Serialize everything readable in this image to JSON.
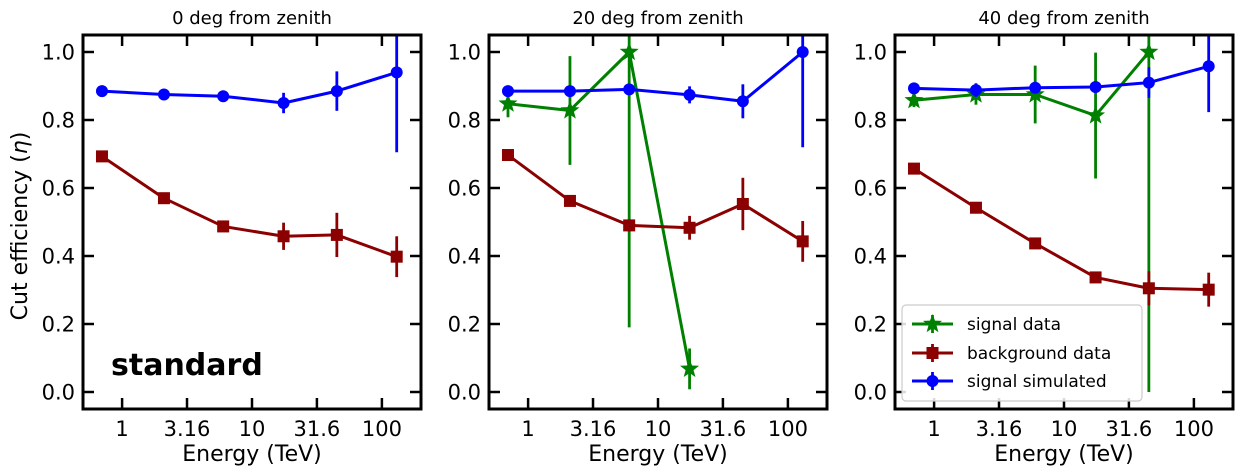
{
  "chart_data": {
    "type": "line",
    "xlabel": "Energy (TeV)",
    "ylabel": "Cut efficiency (η)",
    "ylabel_main": "Cut efficiency (",
    "ylabel_symbol": "η",
    "ylabel_close": ")",
    "x_scale": "log",
    "xlim": [
      0.5,
      200
    ],
    "ylim": [
      -0.05,
      1.05
    ],
    "x_ticks": [
      1,
      3.16,
      10,
      31.6,
      100
    ],
    "x_tick_labels": [
      "1",
      "3.16",
      "10",
      "31.6",
      "100"
    ],
    "y_ticks": [
      0.0,
      0.2,
      0.4,
      0.6,
      0.8,
      1.0
    ],
    "y_tick_labels": [
      "0.0",
      "0.2",
      "0.4",
      "0.6",
      "0.8",
      "1.0"
    ],
    "grid": false,
    "annotation": "standard",
    "legend": {
      "placement": "lower-left",
      "panel": 2,
      "entries": [
        "signal data",
        "background data",
        "signal simulated"
      ]
    },
    "series_styles": [
      {
        "name": "signal data",
        "color": "#008000",
        "marker": "star"
      },
      {
        "name": "background data",
        "color": "#8B0000",
        "marker": "square"
      },
      {
        "name": "signal simulated",
        "color": "#0000FF",
        "marker": "circle"
      }
    ],
    "panels": [
      {
        "title": "0 deg from zenith",
        "series": [
          {
            "name": "background data",
            "x": [
              0.7,
              2.1,
              6.0,
              17.5,
              45,
              130
            ],
            "y": [
              0.693,
              0.57,
              0.487,
              0.458,
              0.462,
              0.398
            ],
            "err": [
              0.01,
              0.01,
              0.015,
              0.04,
              0.065,
              0.06
            ]
          },
          {
            "name": "signal simulated",
            "x": [
              0.7,
              2.1,
              6.0,
              17.5,
              45,
              130
            ],
            "y": [
              0.885,
              0.875,
              0.87,
              0.85,
              0.885,
              0.94
            ],
            "err": [
              0.008,
              0.008,
              0.01,
              0.03,
              0.058,
              0.235
            ]
          }
        ]
      },
      {
        "title": "20 deg from zenith",
        "series": [
          {
            "name": "signal data",
            "x": [
              0.7,
              2.1,
              6.0,
              17.5
            ],
            "y": [
              0.848,
              0.828,
              1.0,
              0.068
            ],
            "err": [
              0.04,
              0.16,
              0.81,
              0.06
            ]
          },
          {
            "name": "background data",
            "x": [
              0.7,
              2.1,
              6.0,
              17.5,
              45,
              130
            ],
            "y": [
              0.697,
              0.562,
              0.49,
              0.483,
              0.553,
              0.443
            ],
            "err": [
              0.01,
              0.012,
              0.018,
              0.035,
              0.077,
              0.06
            ]
          },
          {
            "name": "signal simulated",
            "x": [
              0.7,
              2.1,
              6.0,
              17.5,
              45,
              130
            ],
            "y": [
              0.885,
              0.885,
              0.89,
              0.874,
              0.855,
              1.0
            ],
            "err": [
              0.008,
              0.008,
              0.012,
              0.025,
              0.05,
              0.28
            ]
          }
        ]
      },
      {
        "title": "40 deg from zenith",
        "series": [
          {
            "name": "signal data",
            "x": [
              0.7,
              2.1,
              6.0,
              17.5,
              45
            ],
            "y": [
              0.858,
              0.875,
              0.875,
              0.813,
              1.0
            ],
            "err": [
              0.02,
              0.03,
              0.085,
              0.185,
              1.0
            ]
          },
          {
            "name": "background data",
            "x": [
              0.7,
              2.1,
              6.0,
              17.5,
              45,
              130
            ],
            "y": [
              0.657,
              0.542,
              0.437,
              0.337,
              0.305,
              0.301
            ],
            "err": [
              0.01,
              0.01,
              0.01,
              0.012,
              0.05,
              0.05
            ]
          },
          {
            "name": "signal simulated",
            "x": [
              0.7,
              2.1,
              6.0,
              17.5,
              45,
              130
            ],
            "y": [
              0.893,
              0.888,
              0.895,
              0.897,
              0.91,
              0.958
            ],
            "err": [
              0.008,
              0.02,
              0.012,
              0.012,
              0.045,
              0.135
            ]
          }
        ]
      }
    ]
  }
}
